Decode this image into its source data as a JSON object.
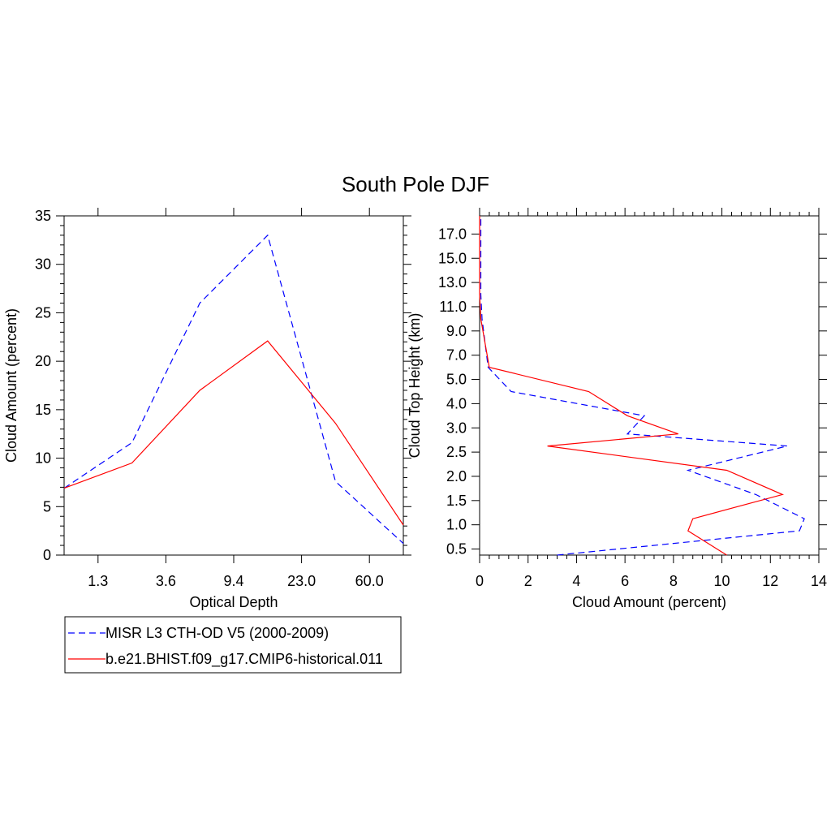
{
  "title": "South Pole DJF",
  "colors": {
    "obs": "#0000ff",
    "model": "#ff0000",
    "axis": "#000000"
  },
  "chart_data": [
    {
      "id": "left",
      "type": "line",
      "xlabel": "Optical Depth",
      "ylabel": "Cloud Amount (percent)",
      "ylim": [
        0,
        35
      ],
      "y_ticks": [
        "0",
        "5",
        "10",
        "15",
        "20",
        "25",
        "30",
        "35"
      ],
      "x_tick_labels": [
        "1.3",
        "3.6",
        "9.4",
        "23.0",
        "60.0"
      ],
      "x_index_range": [
        0,
        5
      ],
      "x": [
        0,
        1,
        2,
        3,
        4,
        5
      ],
      "series": [
        {
          "name": "MISR L3 CTH-OD V5 (2000-2009)",
          "style": "dashed",
          "values": [
            6.9,
            11.6,
            26.0,
            33.0,
            7.6,
            1.2
          ]
        },
        {
          "name": "b.e21.BHIST.f09_g17.CMIP6-historical.011",
          "style": "solid",
          "values": [
            6.9,
            9.5,
            17.0,
            22.1,
            13.6,
            3.1
          ]
        }
      ]
    },
    {
      "id": "right",
      "type": "line",
      "xlabel": "Cloud Amount (percent)",
      "ylabel": "Cloud Top Height (km)",
      "xlim": [
        0,
        14
      ],
      "x_ticks": [
        "0",
        "2",
        "4",
        "6",
        "8",
        "10",
        "12",
        "14"
      ],
      "y_tick_labels": [
        "0.5",
        "1.0",
        "1.5",
        "2.0",
        "2.5",
        "3.0",
        "4.0",
        "5.0",
        "7.0",
        "9.0",
        "11.0",
        "13.0",
        "15.0",
        "17.0"
      ],
      "y_index_range": [
        -0.25,
        13.75
      ],
      "levels": [
        -0.25,
        0.75,
        1.25,
        2.25,
        3.25,
        4.25,
        4.75,
        5.5,
        6.5,
        7.5,
        9.5,
        10.5,
        11.5,
        12.5,
        13.5,
        13.75
      ],
      "series": [
        {
          "name": "MISR L3 CTH-OD V5 (2000-2009)",
          "style": "dashed",
          "values": [
            3.2,
            13.2,
            13.4,
            11.4,
            8.6,
            12.7,
            6.1,
            6.8,
            1.3,
            0.35,
            0.1,
            0.05,
            0.05,
            0.05,
            0.05,
            0.05
          ]
        },
        {
          "name": "b.e21.BHIST.f09_g17.CMIP6-historical.011",
          "style": "solid",
          "values": [
            10.2,
            8.6,
            8.8,
            12.5,
            10.2,
            2.8,
            8.2,
            6.1,
            4.5,
            0.4,
            0.05,
            0.0,
            0.0,
            0.0,
            0.0,
            0.0
          ]
        }
      ]
    }
  ],
  "legend": [
    {
      "label": "MISR L3 CTH-OD V5 (2000-2009)",
      "style": "dashed"
    },
    {
      "label": "b.e21.BHIST.f09_g17.CMIP6-historical.011",
      "style": "solid"
    }
  ]
}
